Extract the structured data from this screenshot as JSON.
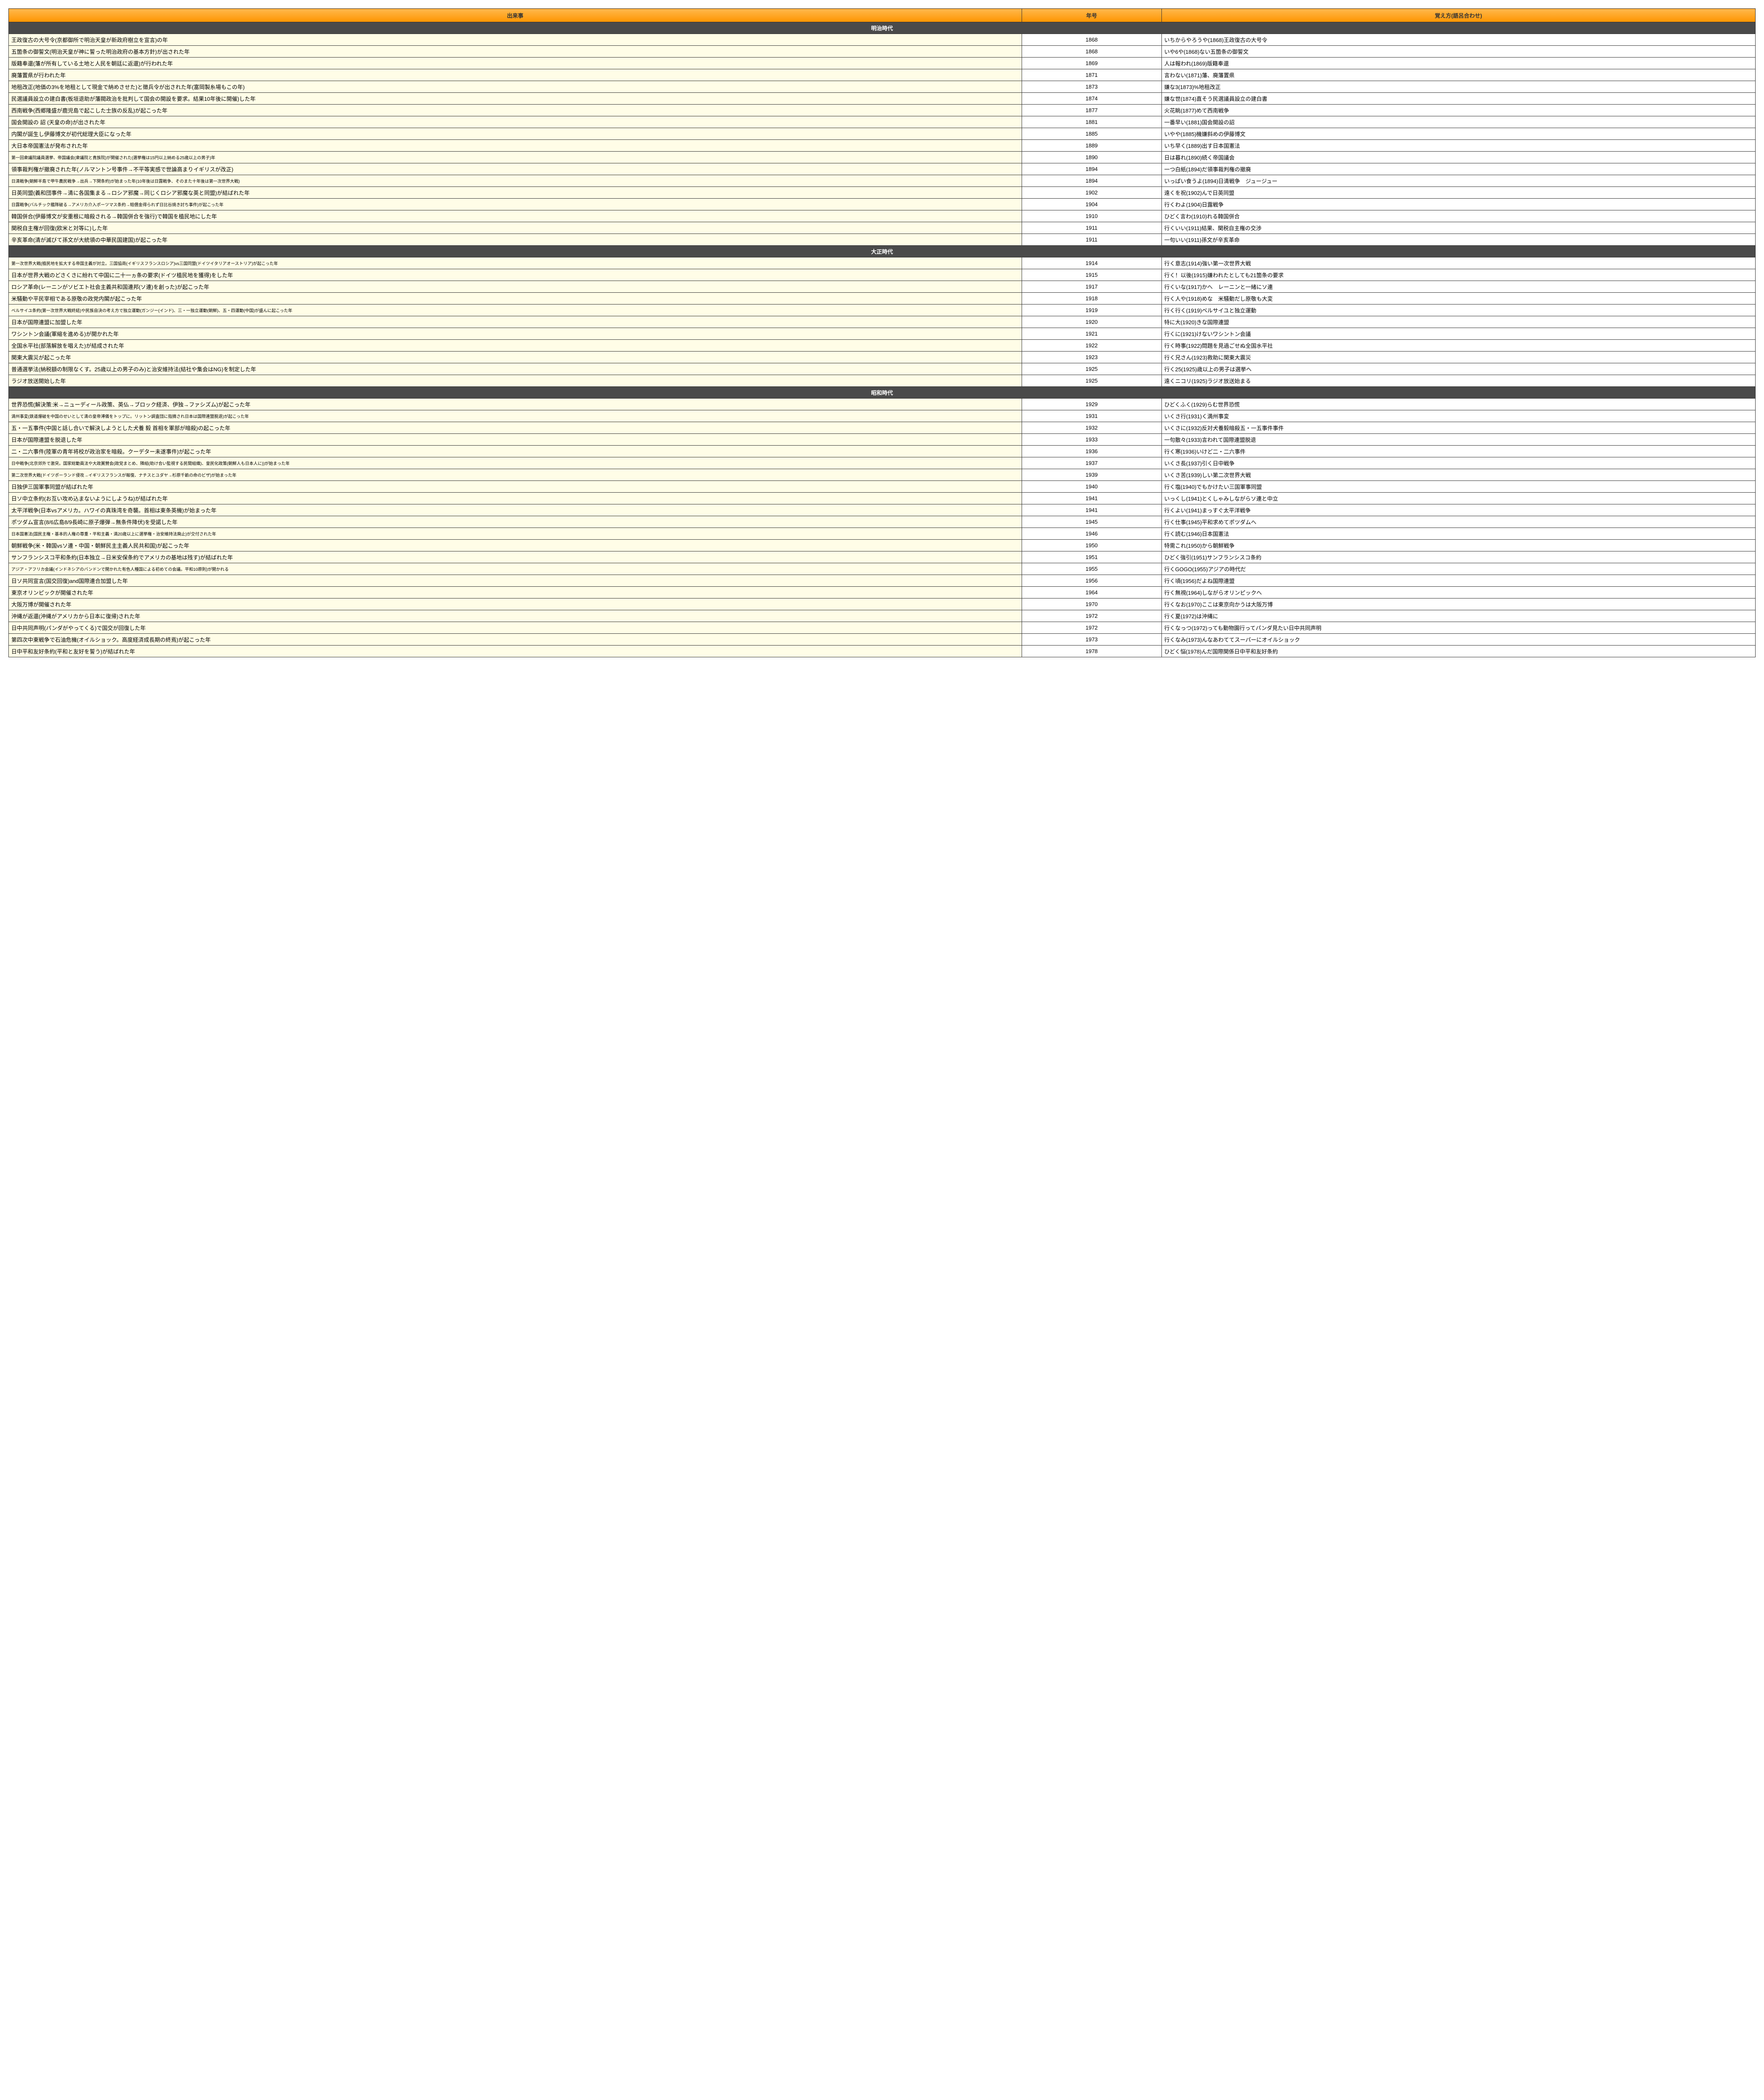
{
  "headers": {
    "event": "出来事",
    "year": "年号",
    "mnemonic": "覚え方(語呂合わせ)"
  },
  "eras": [
    {
      "name": "明治時代",
      "rows": [
        {
          "event": "王政復古の大号令(京都御所で明治天皇が新政府樹立を宣言)の年",
          "year": "1868",
          "mnemonic": "いちからやろうや(1868)王政復古の大号令"
        },
        {
          "event": "五箇条の御誓文(明治天皇が神に誓った明治政府の基本方針)が出された年",
          "year": "1868",
          "mnemonic": "いや6や(1868)ない五箇条の御誓文"
        },
        {
          "event": "版籍奉還(藩が所有している土地と人民を朝廷に返還)が行われた年",
          "year": "1869",
          "mnemonic": "人は報われ(1869)版籍奉還"
        },
        {
          "event": "廃藩置県が行われた年",
          "year": "1871",
          "mnemonic": "言わない(1871)藩、廃藩置県"
        },
        {
          "event": "地租改正(地価の3%を地租として現金で納めさせた)と徴兵令が出された年(富岡製糸場もこの年)",
          "year": "1873",
          "mnemonic": "嫌な3(1873)%地租改正"
        },
        {
          "event": "民選議員設立の建白書(板垣退助が藩閥政治を批判して国会の開設を要求。結果10年後に開催)した年",
          "year": "1874",
          "mnemonic": "嫌な世(1874)直そう民選議員設立の建白書"
        },
        {
          "event": "西南戦争(西郷隆盛が鹿児島で起こした士族の反乱)が起こった年",
          "year": "1877",
          "mnemonic": "火花眺(1877)めて西南戦争"
        },
        {
          "event": "国会開設の 詔 (天皇の命)が出された年",
          "year": "1881",
          "mnemonic": "一番早い(1881)国会開設の詔"
        },
        {
          "event": "内閣が誕生し伊藤博文が初代総理大臣になった年",
          "year": "1885",
          "mnemonic": "いやや(1885)機嫌斜めの伊藤博文"
        },
        {
          "event": "大日本帝国憲法が発布された年",
          "year": "1889",
          "mnemonic": "いち早く(1889)出す日本国憲法"
        },
        {
          "event": "第一回衆議院議員選挙、帝国議会(衆議院と貴族院)が開催された(選挙権は15円以上納める25歳以上の男子)年",
          "year": "1890",
          "mnemonic": "日は暮れ(1890)続く帝国議会",
          "small": true
        },
        {
          "event": "領事裁判権が撤廃された年(ノルマントン号事件→不平等実感で世論高まりイギリスが改正)",
          "year": "1894",
          "mnemonic": "一つ白紙(1894)だ領事裁判権の撤廃"
        },
        {
          "event": "日清戦争(朝鮮半島で甲午農民戦争→出兵→下関条約)が始まった年(10年後は日露戦争、そのまた十年後は第一次世界大戦)",
          "year": "1894",
          "mnemonic": "いっぱい食うよ(1894)日清戦争　ジュージュー",
          "small": true
        },
        {
          "event": "日英同盟(義和団事件→清に各国集まる→ロシア邪魔→同じくロシア邪魔な英と同盟)が結ばれた年",
          "year": "1902",
          "mnemonic": "遠くを祝(1902)んで日英同盟"
        },
        {
          "event": "日露戦争(バルチック艦隊破る→アメリカ介入ポーツマス条約→賠償金得られず日比谷焼き討ち事件)が起こった年",
          "year": "1904",
          "mnemonic": "行くわよ(1904)日露戦争",
          "small": true
        },
        {
          "event": "韓国併合(伊藤博文が安重根に暗殺される→韓国併合を強行)で韓国を植民地にした年",
          "year": "1910",
          "mnemonic": "ひどく言わ(1910)れる韓国併合"
        },
        {
          "event": "関税自主権が回復(欧米と対等に)した年",
          "year": "1911",
          "mnemonic": "行くいい(1911)結果、関税自主権の交渉"
        },
        {
          "event": "辛亥革命(清が滅びて孫文が大統領の中華民国建国)が起こった年",
          "year": "1911",
          "mnemonic": "一句いい(1911)孫文が辛亥革命"
        }
      ]
    },
    {
      "name": "大正時代",
      "rows": [
        {
          "event": "第一次世界大戦(植民地を拡大する帝国主義が対立。三国協商(イギリスフランスロシア)vs三国同盟(ドイツイタリアオーストリア)が起こった年",
          "year": "1914",
          "mnemonic": "行く意志(1914)強い第一次世界大戦",
          "small": true
        },
        {
          "event": "日本が世界大戦のどさくさに紛れて中国に二十一ヵ条の要求(ドイツ植民地を獲得)をした年",
          "year": "1915",
          "mnemonic": "行く！以後(1915)嫌われたとしても21箇条の要求"
        },
        {
          "event": "ロシア革命(レーニンがソビエト社会主義共和国連邦(ソ連)を創った)が起こった年",
          "year": "1917",
          "mnemonic": "行くいな(1917)かへ　レーニンと一緒にソ連"
        },
        {
          "event": "米騒動や平民宰相である原敬の政党内閣が起こった年",
          "year": "1918",
          "mnemonic": "行く人や(1918)めな　米騒動だし原敬も大変"
        },
        {
          "event": "ベルサイユ条約(第一次世界大戦終結)や民族自決の考え方で独立運動(ガンジー(インド)、三・一独立運動(朝鮮)、五・四運動(中国)が盛んに起こった年",
          "year": "1919",
          "mnemonic": "行く行く(1919)ベルサイユと独立運動",
          "small": true
        },
        {
          "event": "日本が国際連盟に加盟した年",
          "year": "1920",
          "mnemonic": "特に大(1920)きな国際連盟"
        },
        {
          "event": "ワシントン会議(軍縮を進める)が開かれた年",
          "year": "1921",
          "mnemonic": "行くに(1921)けないワシントン会議"
        },
        {
          "event": "全国水平社(部落解放を唱えた)が結成された年",
          "year": "1922",
          "mnemonic": "行く時事(1922)問題を見過ごせぬ全国水平社"
        },
        {
          "event": "関東大震災が起こった年",
          "year": "1923",
          "mnemonic": "行く兄さん(1923)救助に関東大震災"
        },
        {
          "event": "普通選挙法(納税額の制限なくす。25歳以上の男子のみ)と治安維持法(結社や集会はNG)を制定した年",
          "year": "1925",
          "mnemonic": "行く25(1925)歳以上の男子は選挙へ"
        },
        {
          "event": "ラジオ放送開始した年",
          "year": "1925",
          "mnemonic": "遠くニコリ(1925)ラジオ放送始まる"
        }
      ]
    },
    {
      "name": "昭和時代",
      "rows": [
        {
          "event": "世界恐慌(解決策:米→ニューディール政策、英仏→ブロック経済、伊独→ファシズム)が起こった年",
          "year": "1929",
          "mnemonic": "ひどくふく(1929)らむ世界恐慌"
        },
        {
          "event": "満州事変(鉄道爆破を中国のせいとして清の皇帝溥儀をトップに。リットン調査団に指摘され日本は国際連盟脱退)が起こった年",
          "year": "1931",
          "mnemonic": "いくさ行(1931)く満州事変",
          "small": true
        },
        {
          "event": "五・一五事件(中国と話し合いで解決しようとした犬養 毅 首相を軍部が暗殺)の起こった年",
          "year": "1932",
          "mnemonic": "いくさに(1932)反対犬養毅暗殺五・一五事件事件"
        },
        {
          "event": "日本が国際連盟を脱退した年",
          "year": "1933",
          "mnemonic": "一句散々(1933)言われて国際連盟脱退"
        },
        {
          "event": "二・二六事件(陸軍の青年将校が政治家を暗殺。クーデター未遂事件)が起こった年",
          "year": "1936",
          "mnemonic": "行く寒(1936)いけど二・二六事件"
        },
        {
          "event": "日中戦争(北京郊外で激突。国家総動員法や大政翼賛会(政党まとめ、隣組(助け合い監視する民間組織)、皇民化政策(朝鮮人も日本人に))が始まった年",
          "year": "1937",
          "mnemonic": "いくさ長(1937)引く日中戦争",
          "small": true
        },
        {
          "event": "第二次世界大戦(ドイツポーランド侵攻→イギリスフランスが報復、ナチスとユダヤ→杉原千畝の命のビザ)が始まった年",
          "year": "1939",
          "mnemonic": "いくさ苦(1939)しい第二次世界大戦",
          "small": true
        },
        {
          "event": "日独伊三国軍事同盟が結ばれた年",
          "year": "1940",
          "mnemonic": "行く塩(1940)でもかけたい三国軍事同盟"
        },
        {
          "event": "日ソ中立条約(お互い攻め込まないようにしようね)が結ばれた年",
          "year": "1941",
          "mnemonic": "いっくし(1941)とくしゃみしながらソ連と中立"
        },
        {
          "event": "太平洋戦争(日本vsアメリカ。ハワイの真珠湾を奇襲。首相は東条英機)が始まった年",
          "year": "1941",
          "mnemonic": "行くよい(1941)まっすぐ太平洋戦争"
        },
        {
          "event": "ポツダム宣言(8/6広島8/9長崎に原子爆弾→無条件降伏)を受諾した年",
          "year": "1945",
          "mnemonic": "行く仕事(1945)平和求めてポツダムへ"
        },
        {
          "event": "日本国憲法(国民主権・基本的人権の尊重・平和主義・満20歳以上に選挙権・治安維持法廃止)が交付された年",
          "year": "1946",
          "mnemonic": "行く読む(1946)日本国憲法",
          "small": true
        },
        {
          "event": "朝鮮戦争(米・韓国vsソ連・中国・朝鮮民主主義人民共和国)が起こった年",
          "year": "1950",
          "mnemonic": "特需これ(1950)から朝鮮戦争"
        },
        {
          "event": "サンフランシスコ平和条約(日本独立→日米安保条約でアメリカの基地は残す)が結ばれた年",
          "year": "1951",
          "mnemonic": "ひどく強引(1951)サンフランシスコ条約"
        },
        {
          "event": "アジア・アフリカ会議(インドネシアのバンドンで開かれた有色人種国による初めての会議。平和10原則)が開かれる",
          "year": "1955",
          "mnemonic": "行くGOGO(1955)アジアの時代だ",
          "small": true
        },
        {
          "event": "日ソ共同宣言(国交回復)and国際連合加盟した年",
          "year": "1956",
          "mnemonic": "行く頃(1956)だよね国際連盟"
        },
        {
          "event": "東京オリンピックが開催された年",
          "year": "1964",
          "mnemonic": "行く無視(1964)しながらオリンピックへ"
        },
        {
          "event": "大阪万博が開催された年",
          "year": "1970",
          "mnemonic": "行くなお(1970)ここは東京向かうは大阪万博"
        },
        {
          "event": "沖縄が返還(沖縄がアメリカから日本に復帰)された年",
          "year": "1972",
          "mnemonic": "行く夏(1972)は沖縄に"
        },
        {
          "event": "日中共同声明(パンダがやってくる)で国交が回復した年",
          "year": "1972",
          "mnemonic": "行くなっつ(1972)っても動物園行ってパンダ見たい日中共同声明"
        },
        {
          "event": "第四次中東戦争で石油危機(オイルショック。高度経済成長期の終焉)が起こった年",
          "year": "1973",
          "mnemonic": "行くなみ(1973)んなあわててスーパーにオイルショック"
        },
        {
          "event": "日中平和友好条約(平和と友好を誓う)が結ばれた年",
          "year": "1978",
          "mnemonic": "ひどく悩(1978)んだ国際関係日中平和友好条約"
        }
      ]
    }
  ]
}
